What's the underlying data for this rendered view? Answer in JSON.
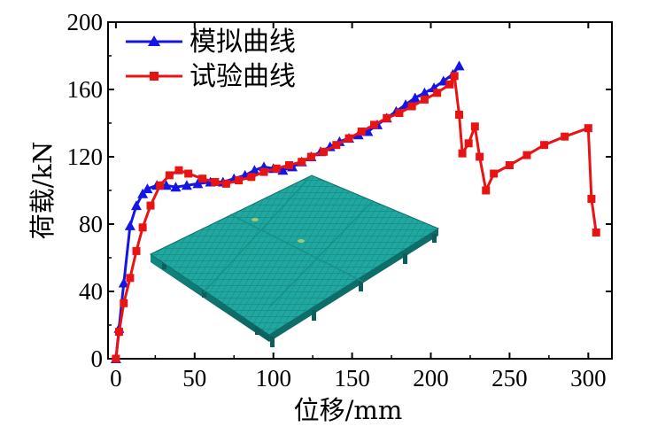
{
  "chart_data": {
    "type": "line",
    "xlabel": "位移/mm",
    "ylabel": "荷载/kN",
    "xlim": [
      -5,
      315
    ],
    "ylim": [
      0,
      200
    ],
    "xticks": [
      0,
      50,
      100,
      150,
      200,
      250,
      300
    ],
    "yticks": [
      0,
      40,
      80,
      120,
      160,
      200
    ],
    "xtick_labels": [
      "0",
      "50",
      "100",
      "150",
      "200",
      "250",
      "300"
    ],
    "ytick_labels": [
      "0",
      "40",
      "80",
      "120",
      "160",
      "200"
    ],
    "legend": {
      "placement": "top-left"
    },
    "inset": {
      "name": "3d-plate-model",
      "description_color": "#1fa7a0"
    },
    "series": [
      {
        "name": "模拟曲线",
        "color": "#1515e6",
        "marker": "triangle",
        "x": [
          0,
          2,
          5,
          9,
          13,
          17,
          20,
          26,
          32,
          38,
          45,
          52,
          60,
          68,
          75,
          82,
          88,
          94,
          100,
          106,
          112,
          118,
          124,
          130,
          136,
          142,
          148,
          154,
          160,
          166,
          172,
          178,
          184,
          190,
          196,
          202,
          208,
          214,
          218
        ],
        "y": [
          0,
          18,
          45,
          79,
          91,
          98,
          101,
          103,
          103,
          102,
          103,
          104,
          105,
          105,
          107,
          109,
          112,
          114,
          113,
          112,
          114,
          117,
          120,
          123,
          126,
          129,
          131,
          133,
          135,
          139,
          143,
          147,
          151,
          155,
          158,
          161,
          165,
          169,
          174
        ]
      },
      {
        "name": "试验曲线",
        "color": "#e81414",
        "marker": "square",
        "x": [
          0,
          2,
          5,
          9,
          13,
          17,
          22,
          28,
          34,
          40,
          46,
          55,
          63,
          70,
          78,
          86,
          94,
          102,
          110,
          118,
          124,
          132,
          140,
          148,
          156,
          164,
          172,
          180,
          188,
          196,
          204,
          212,
          215,
          218,
          220,
          224,
          228,
          231,
          235,
          240,
          250,
          261,
          272,
          285,
          300,
          302,
          305
        ],
        "y": [
          0,
          16,
          33,
          48,
          64,
          78,
          91,
          103,
          109,
          112,
          110,
          107,
          105,
          104,
          106,
          108,
          111,
          113,
          115,
          117,
          120,
          123,
          127,
          131,
          135,
          139,
          143,
          146,
          150,
          154,
          158,
          163,
          168,
          145,
          122,
          128,
          138,
          120,
          100,
          110,
          115,
          121,
          127,
          132,
          137,
          95,
          75
        ]
      }
    ]
  }
}
